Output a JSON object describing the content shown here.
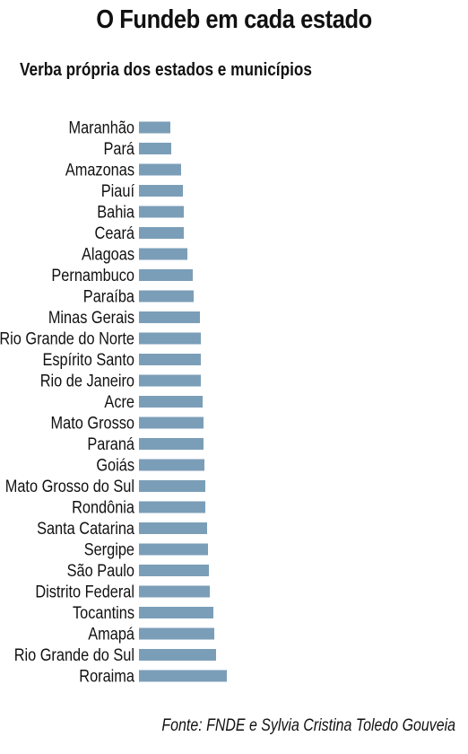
{
  "title": "O Fundeb em cada estado",
  "subtitle": "Verba própria dos estados e municípios",
  "source": "Fonte: FNDE e Sylvia Cristina Toledo Gouveia",
  "colors": {
    "bar": "#7b9eb8",
    "text": "#111111"
  },
  "chart_data": {
    "type": "bar",
    "orientation": "horizontal",
    "title": "O Fundeb em cada estado",
    "subtitle": "Verba própria dos estados e municípios",
    "xlabel": "",
    "ylabel": "",
    "grid": false,
    "x_axis_shown": false,
    "categories": [
      "Maranhão",
      "Pará",
      "Amazonas",
      "Piauí",
      "Bahia",
      "Ceará",
      "Alagoas",
      "Pernambuco",
      "Paraíba",
      "Minas Gerais",
      "Rio Grande do Norte",
      "Espírito Santo",
      "Rio de Janeiro",
      "Acre",
      "Mato Grosso",
      "Paraná",
      "Goiás",
      "Mato Grosso do Sul",
      "Rondônia",
      "Santa Catarina",
      "Sergipe",
      "São Paulo",
      "Distrito Federal",
      "Tocantins",
      "Amapá",
      "Rio Grande do Sul",
      "Roraima"
    ],
    "values": [
      35,
      36,
      47,
      49,
      50,
      50,
      54,
      60,
      61,
      68,
      69,
      69,
      69,
      71,
      72,
      72,
      73,
      74,
      74,
      76,
      77,
      78,
      79,
      83,
      84,
      86,
      98
    ],
    "value_units": "relative bar length (no scale shown)"
  }
}
